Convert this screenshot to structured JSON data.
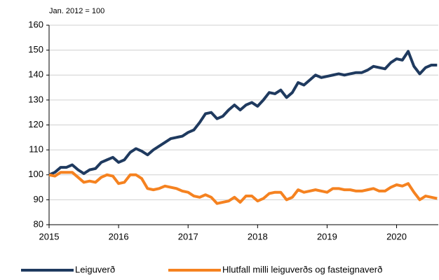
{
  "chart_data": {
    "type": "line",
    "annotation": "Jan. 2012 = 100",
    "x": [
      2015,
      2015.083,
      2015.167,
      2015.25,
      2015.333,
      2015.417,
      2015.5,
      2015.583,
      2015.667,
      2015.75,
      2015.833,
      2015.917,
      2016,
      2016.083,
      2016.167,
      2016.25,
      2016.333,
      2016.417,
      2016.5,
      2016.583,
      2016.667,
      2016.75,
      2016.833,
      2016.917,
      2017,
      2017.083,
      2017.167,
      2017.25,
      2017.333,
      2017.417,
      2017.5,
      2017.583,
      2017.667,
      2017.75,
      2017.833,
      2017.917,
      2018,
      2018.083,
      2018.167,
      2018.25,
      2018.333,
      2018.417,
      2018.5,
      2018.583,
      2018.667,
      2018.75,
      2018.833,
      2018.917,
      2019,
      2019.083,
      2019.167,
      2019.25,
      2019.333,
      2019.417,
      2019.5,
      2019.583,
      2019.667,
      2019.75,
      2019.833,
      2019.917,
      2020,
      2020.083,
      2020.167,
      2020.25,
      2020.333,
      2020.417,
      2020.5,
      2020.583
    ],
    "series": [
      {
        "name": "Leiguverð",
        "color": "#1f3a5f",
        "values": [
          100,
          101,
          103,
          103,
          104,
          102,
          100.5,
          102,
          102.5,
          105,
          106,
          107,
          105,
          106,
          109,
          110.5,
          109.5,
          108,
          110,
          111.5,
          113,
          114.5,
          115,
          115.5,
          117,
          118,
          121,
          124.5,
          125,
          122.5,
          123.5,
          126,
          128,
          126,
          128,
          129,
          127.5,
          130,
          133,
          132.5,
          134,
          131,
          133,
          137,
          136,
          138,
          140,
          139,
          139.5,
          140,
          140.5,
          140,
          140.5,
          141,
          141,
          142,
          143.5,
          143,
          142.5,
          145,
          146.5,
          146,
          149.5,
          143.5,
          140.5,
          143,
          144,
          144
        ]
      },
      {
        "name": "Hlutfall milli leiguverðs og fasteignaverð",
        "color": "#f58220",
        "values": [
          100,
          99.5,
          101,
          101,
          101,
          99,
          97,
          97.5,
          97,
          99,
          100,
          99.5,
          96.5,
          97,
          100,
          100,
          98.5,
          94.5,
          94,
          94.5,
          95.5,
          95,
          94.5,
          93.5,
          93,
          91.5,
          91,
          92,
          91,
          88.5,
          89,
          89.5,
          91,
          89,
          91.5,
          91.5,
          89.5,
          90.5,
          92.5,
          93,
          93,
          90,
          91,
          94,
          93,
          93.5,
          94,
          93.5,
          93,
          94.5,
          94.5,
          94,
          94,
          93.5,
          93.5,
          94,
          94.5,
          93.5,
          93.5,
          95,
          96,
          95.5,
          96.5,
          93,
          90,
          91.5,
          91,
          90.5
        ]
      }
    ],
    "xlim": [
      2015,
      2020.6
    ],
    "xticks": [
      2015,
      2016,
      2017,
      2018,
      2019,
      2020
    ],
    "ylim": [
      80,
      160
    ],
    "yticks": [
      80,
      90,
      100,
      110,
      120,
      130,
      140,
      150,
      160
    ],
    "grid": true,
    "legend": "bottom"
  }
}
